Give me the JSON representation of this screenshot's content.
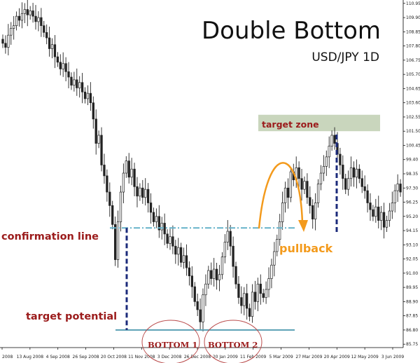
{
  "chart_data": {
    "type": "candlestick",
    "title": "Double Bottom",
    "subtitle": "USD/JPY 1D",
    "x_tick_labels": [
      "2008",
      "13 Aug 2008",
      "4 Sep 2008",
      "26 Sep 2008",
      "20 Oct 2008",
      "11 Nov 2008",
      "3 Dec 2008",
      "26 Dec 2008",
      "20 Jan 2009",
      "11 Feb 2009",
      "5 Mar 2009",
      "27 Mar 2009",
      "20 Apr 2009",
      "12 May 2009",
      "3 Jun 2009"
    ],
    "y_tick_labels": [
      "110.95",
      "109.90",
      "108.85",
      "107.80",
      "106.75",
      "105.70",
      "104.65",
      "103.60",
      "102.55",
      "101.50",
      "100.45",
      "99.40",
      "98.35",
      "97.30",
      "96.25",
      "95.20",
      "94.15",
      "93.10",
      "92.05",
      "91.00",
      "89.95",
      "88.90",
      "87.85",
      "86.80",
      "85.75"
    ],
    "ylim": [
      85.5,
      111.2
    ],
    "closes": [
      108.0,
      107.7,
      108.6,
      109.1,
      109.3,
      110.0,
      109.7,
      110.2,
      110.5,
      110.1,
      110.4,
      110.0,
      109.6,
      109.9,
      109.3,
      108.8,
      108.4,
      107.6,
      107.9,
      107.0,
      106.6,
      106.1,
      106.5,
      105.9,
      105.5,
      104.9,
      105.3,
      104.7,
      105.1,
      104.4,
      103.9,
      104.3,
      103.6,
      102.4,
      100.6,
      101.2,
      99.0,
      98.2,
      97.0,
      96.0,
      94.6,
      92.0,
      94.8,
      97.0,
      98.4,
      99.3,
      98.1,
      98.7,
      97.4,
      96.7,
      97.3,
      96.6,
      97.2,
      96.2,
      95.5,
      94.8,
      95.2,
      94.2,
      94.7,
      93.9,
      93.2,
      93.7,
      93.0,
      92.4,
      92.9,
      91.8,
      92.3,
      91.4,
      90.8,
      90.0,
      88.9,
      88.3,
      87.4,
      89.4,
      90.2,
      91.2,
      90.6,
      91.3,
      90.5,
      90.9,
      92.2,
      93.3,
      94.1,
      93.0,
      91.5,
      90.2,
      89.2,
      88.6,
      89.5,
      88.4,
      87.8,
      89.6,
      88.9,
      90.2,
      89.5,
      89.2,
      89.8,
      90.6,
      91.6,
      92.6,
      93.5,
      94.8,
      96.2,
      97.3,
      96.6,
      98.5,
      97.9,
      98.8,
      98.0,
      97.2,
      97.8,
      96.6,
      96.0,
      95.0,
      96.2,
      97.6,
      98.4,
      98.9,
      99.6,
      100.4,
      101.2,
      100.6,
      99.8,
      99.0,
      98.0,
      97.2,
      98.0,
      98.8,
      98.1,
      98.7,
      98.0,
      97.4,
      97.1,
      96.2,
      95.7,
      95.2,
      95.9,
      94.9,
      95.5,
      94.4,
      94.9,
      95.6,
      96.2,
      97.1,
      97.6,
      97.0
    ],
    "annotations": {
      "confirmation_line": "confirmation line",
      "target_potential": "target potential",
      "target_zone": "target zone",
      "pullback": "pullback",
      "bottom1": "BOTTOM 1",
      "bottom2": "BOTTOM 2"
    },
    "levels": {
      "confirmation": 94.35,
      "support": 86.8,
      "target_zone": [
        101.5,
        102.3
      ]
    },
    "colors": {
      "candle": "#222222",
      "confirmation": "#66b2c9",
      "support": "#5aa0b4",
      "dashed_blue": "#1b2a7a",
      "target_zone_fill": "#c9d6bd",
      "pullback": "#f39a1c",
      "annotation_red": "#9b1b1b",
      "circle": "#b94a4a"
    }
  }
}
